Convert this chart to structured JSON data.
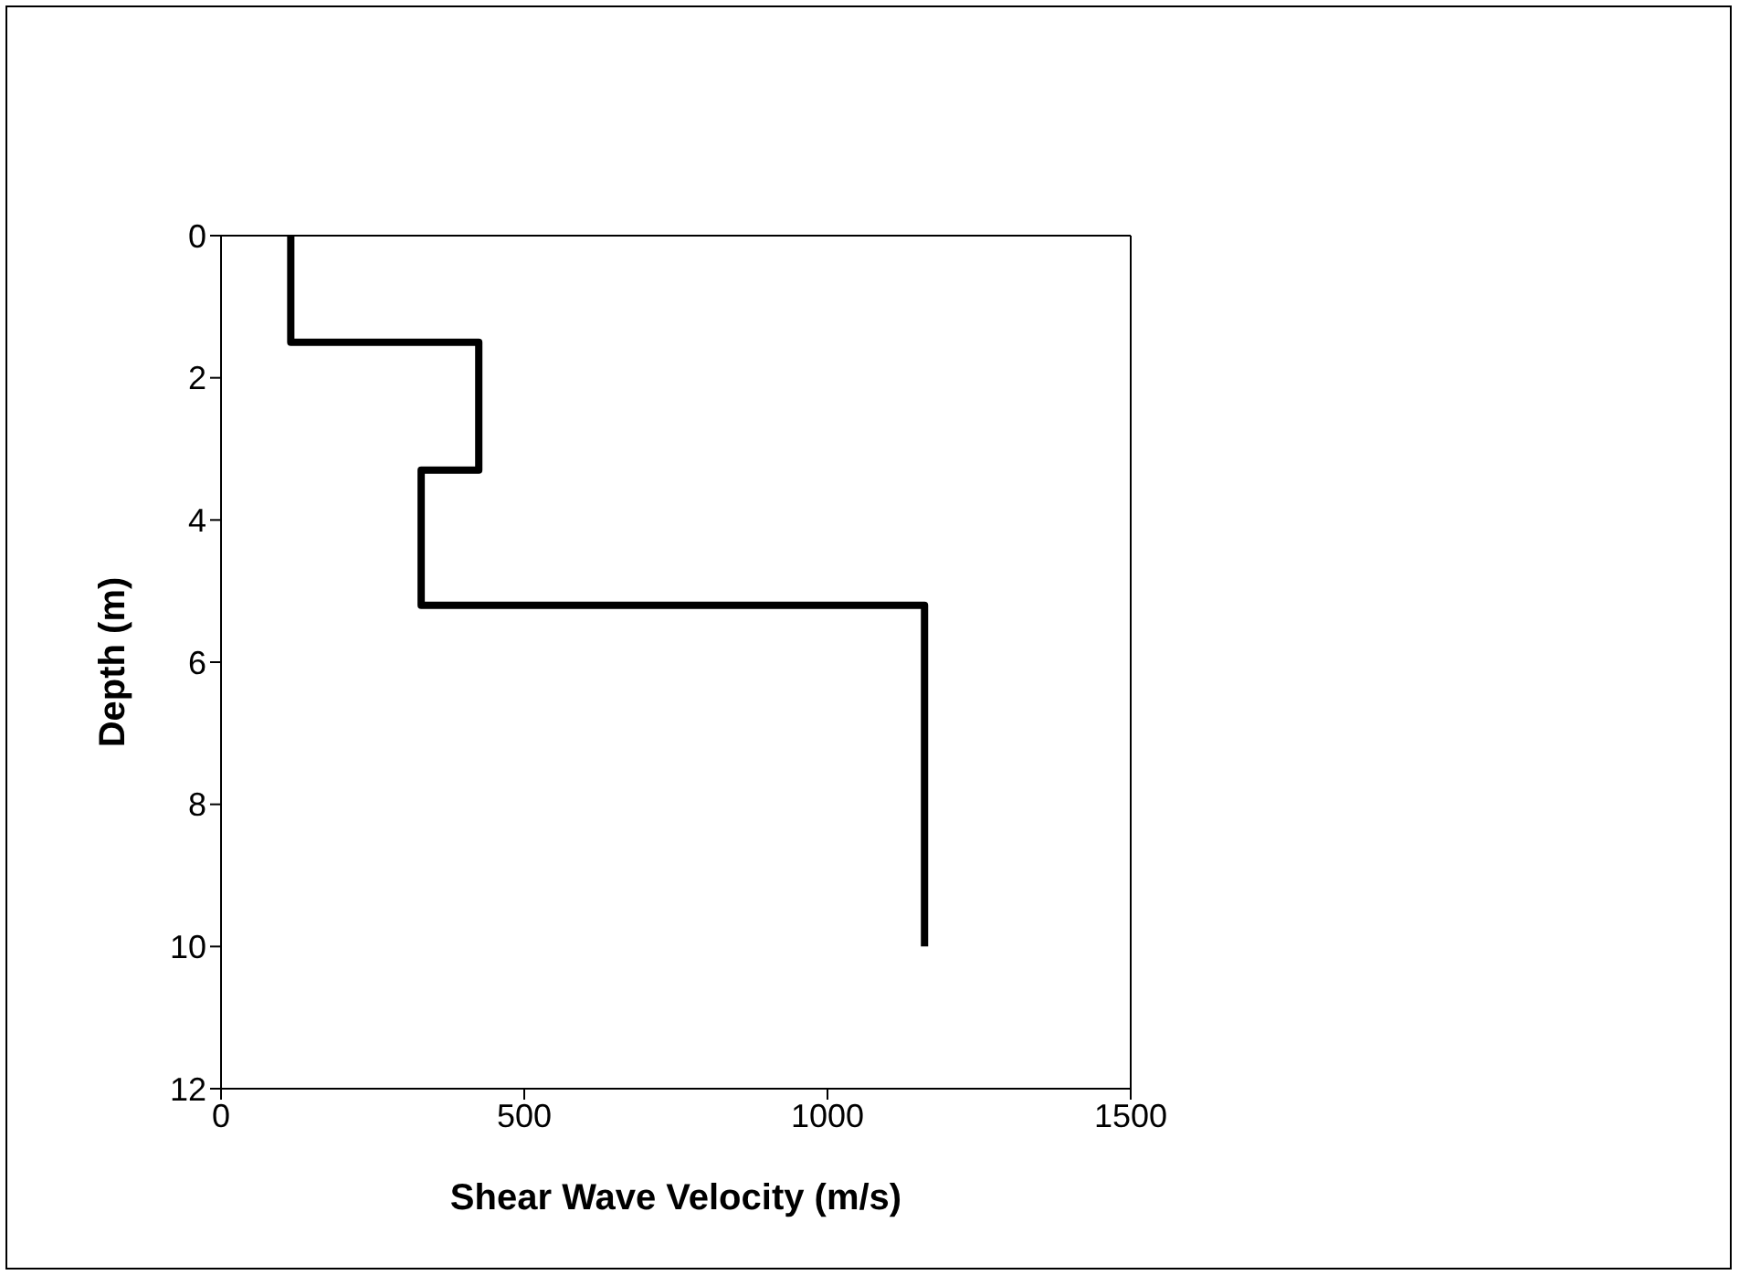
{
  "chart_data": {
    "type": "line",
    "xlabel": "Shear Wave Velocity (m/s)",
    "ylabel": "Depth (m)",
    "x": [
      115,
      115,
      425,
      425,
      330,
      330,
      1160,
      1160
    ],
    "values": [
      0,
      1.5,
      1.5,
      3.3,
      3.3,
      5.2,
      5.2,
      10
    ],
    "color": "#000000",
    "xlim": [
      0,
      1500
    ],
    "xticks": [
      0,
      500,
      1000,
      1500
    ],
    "ylim": [
      12,
      0
    ],
    "yticks": [
      0,
      2,
      4,
      6,
      8,
      10,
      12
    ],
    "grid": false,
    "marker": "none",
    "line_style": "solid"
  }
}
